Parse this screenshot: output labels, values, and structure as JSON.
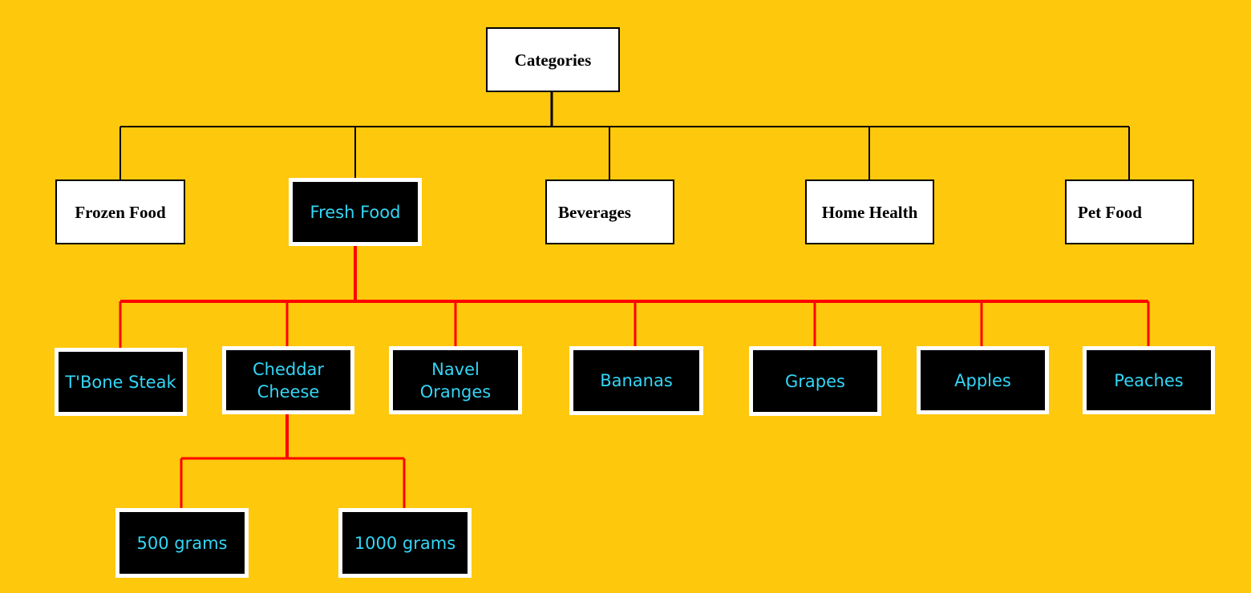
{
  "colors": {
    "background": "#fec80d",
    "top_connector": "#000000",
    "highlight_connector": "#ff0000",
    "highlight_text": "#33d6f6"
  },
  "root": {
    "label": "Categories"
  },
  "categories": [
    {
      "label": "Frozen Food",
      "highlighted": false
    },
    {
      "label": "Fresh Food",
      "highlighted": true
    },
    {
      "label": "Beverages",
      "highlighted": false
    },
    {
      "label": "Home Health",
      "highlighted": false
    },
    {
      "label": "Pet Food",
      "highlighted": false
    }
  ],
  "fresh_food_items": [
    {
      "label": "T'Bone Steak"
    },
    {
      "label": "Cheddar\nCheese"
    },
    {
      "label": "Navel\nOranges"
    },
    {
      "label": "Bananas"
    },
    {
      "label": "Grapes"
    },
    {
      "label": "Apples"
    },
    {
      "label": "Peaches"
    }
  ],
  "cheddar_sizes": [
    {
      "label": "500 grams"
    },
    {
      "label": "1000 grams"
    }
  ]
}
